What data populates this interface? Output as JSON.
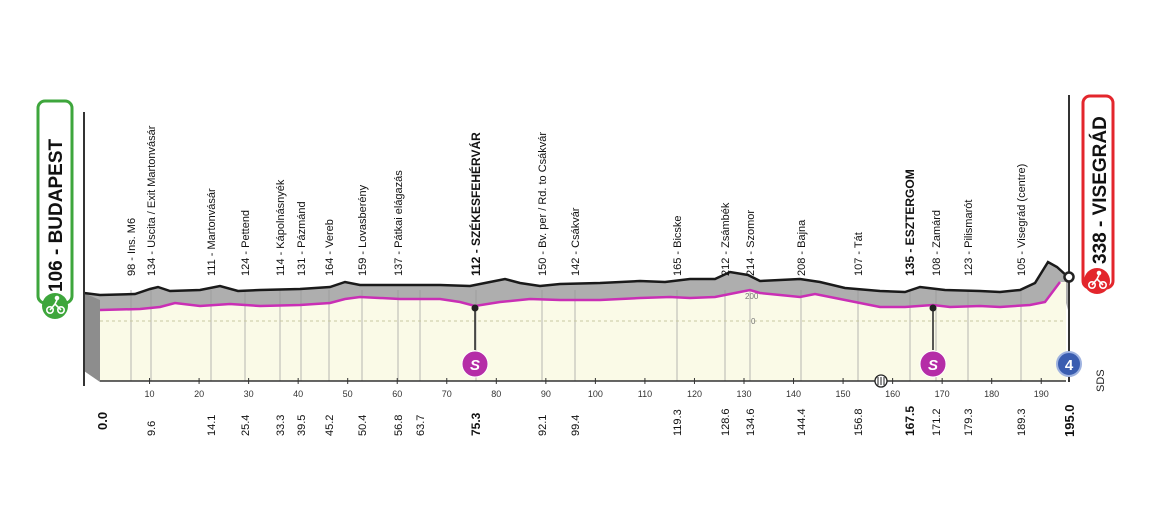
{
  "start": {
    "label": "106 - BUDAPEST",
    "color": "#3ea63c",
    "icon": "cyclist-icon"
  },
  "finish": {
    "label": "338 - VISEGRÁD",
    "color": "#e3262c",
    "icon": "cyclist-icon"
  },
  "colors": {
    "profile_gray": "#aeaeae",
    "profile_fill": "#fafae7",
    "road_pink": "#c92fb5",
    "sprint_purple": "#b52da7",
    "kom_blue": "#3a5db0"
  },
  "waypoints": [
    {
      "label": "98 - Ins. M6",
      "km": "",
      "bold": false
    },
    {
      "label": "134 - Uscita / Exit Martonvásár",
      "km": "9.6",
      "bold": false
    },
    {
      "label": "111 - Martonvásár",
      "km": "14.1",
      "bold": false
    },
    {
      "label": "124 - Pettend",
      "km": "25.4",
      "bold": false
    },
    {
      "label": "114 - Kápolnásnyék",
      "km": "33.3",
      "bold": false
    },
    {
      "label": "131 - Pázmánd",
      "km": "39.5",
      "bold": false
    },
    {
      "label": "164 - Vereb",
      "km": "45.2",
      "bold": false
    },
    {
      "label": "159 - Lovasberény",
      "km": "50.4",
      "bold": false
    },
    {
      "label": "137 - Pátkai elágazás",
      "km": "56.8",
      "bold": false
    },
    {
      "label": "",
      "km": "63.7",
      "bold": false
    },
    {
      "label": "112 - SZÉKESFEHÉRVÁR",
      "km": "75.3",
      "bold": true
    },
    {
      "label": "150 - Bv. per / Rd. to Csákvár",
      "km": "92.1",
      "bold": false
    },
    {
      "label": "142 - Csákvár",
      "km": "99.4",
      "bold": false
    },
    {
      "label": "165 - Bicske",
      "km": "119.3",
      "bold": false
    },
    {
      "label": "212 - Zsámbék",
      "km": "128.6",
      "bold": false
    },
    {
      "label": "214 - Szomor",
      "km": "134.6",
      "bold": false
    },
    {
      "label": "208 - Bajna",
      "km": "144.4",
      "bold": false
    },
    {
      "label": "107 - Tát",
      "km": "156.8",
      "bold": false
    },
    {
      "label": "135 - ESZTERGOM",
      "km": "167.5",
      "bold": true
    },
    {
      "label": "108 - Zamárd",
      "km": "171.2",
      "bold": false
    },
    {
      "label": "123 - Pilismarót",
      "km": "179.3",
      "bold": false
    },
    {
      "label": "105 - Visegrád (centre)",
      "km": "189.3",
      "bold": false
    }
  ],
  "km_start": "0.0",
  "km_end": "195.0",
  "axis_ticks": [
    "10",
    "20",
    "30",
    "40",
    "50",
    "60",
    "70",
    "80",
    "90",
    "100",
    "110",
    "120",
    "130",
    "140",
    "150",
    "160",
    "170",
    "180",
    "190"
  ],
  "altitude_labels": [
    "200",
    "0"
  ],
  "sprint_symbol": "S",
  "kom_category": "4",
  "kom_text": "SDS"
}
